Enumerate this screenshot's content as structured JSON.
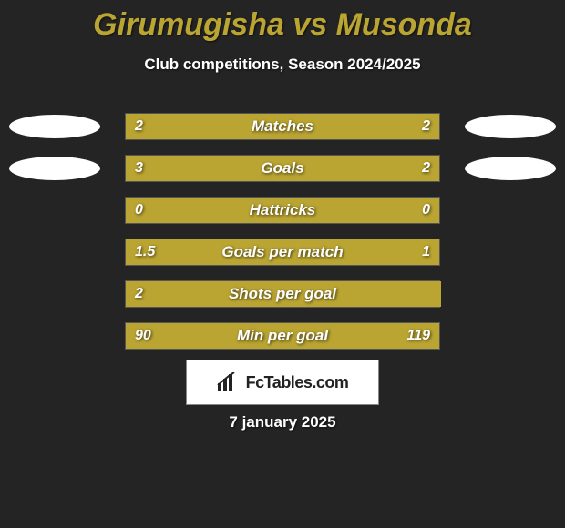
{
  "title_color": "#bba532",
  "bar_left_color": "#bba532",
  "bar_right_color": "#bba532",
  "avatar_bg": "#ffffff",
  "track_width": 346,
  "header": {
    "player_left": "Girumugisha",
    "vs": "vs",
    "player_right": "Musonda",
    "subtitle": "Club competitions, Season 2024/2025"
  },
  "stats": [
    {
      "label": "Matches",
      "left_val": "2",
      "right_val": "2",
      "left_num": 2,
      "right_num": 2,
      "show_avatars": true
    },
    {
      "label": "Goals",
      "left_val": "3",
      "right_val": "2",
      "left_num": 3,
      "right_num": 2,
      "show_avatars": true
    },
    {
      "label": "Hattricks",
      "left_val": "0",
      "right_val": "0",
      "left_num": 0,
      "right_num": 0,
      "show_avatars": false
    },
    {
      "label": "Goals per match",
      "left_val": "1.5",
      "right_val": "1",
      "left_num": 1.5,
      "right_num": 1,
      "show_avatars": false
    },
    {
      "label": "Shots per goal",
      "left_val": "2",
      "right_val": "",
      "left_num": 2,
      "right_num": 0,
      "show_avatars": false
    },
    {
      "label": "Min per goal",
      "left_val": "90",
      "right_val": "119",
      "left_num": 90,
      "right_num": 119,
      "show_avatars": false
    }
  ],
  "logo_text": "FcTables.com",
  "date": "7 january 2025"
}
